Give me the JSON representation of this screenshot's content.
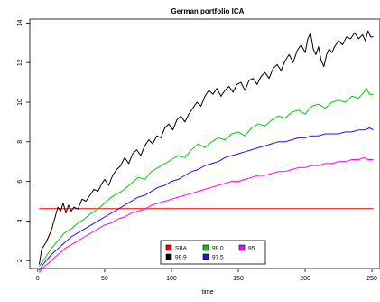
{
  "chart_data": {
    "type": "line",
    "title": "German portfolio ICA",
    "xlabel": "time",
    "ylabel": "",
    "xlim": [
      -6,
      256
    ],
    "ylim": [
      1.6,
      14.2
    ],
    "xticks": [
      0,
      50,
      100,
      150,
      200,
      250
    ],
    "yticks": [
      2,
      4,
      6,
      8,
      10,
      12,
      14
    ],
    "grid": false,
    "legend_position": "bottom-center",
    "legend": {
      "columns": [
        [
          {
            "label": "SBA",
            "color": "#ff0000"
          },
          {
            "label": "99.9",
            "color": "#000000"
          }
        ],
        [
          {
            "label": "99.0",
            "color": "#00cc00"
          },
          {
            "label": "97.5",
            "color": "#3300ff"
          }
        ],
        [
          {
            "label": "95",
            "color": "#ff00ff"
          }
        ]
      ]
    },
    "series": [
      {
        "name": "SBA",
        "color": "#ff0000",
        "points": [
          [
            1,
            4.62
          ],
          [
            251,
            4.62
          ]
        ]
      },
      {
        "name": "99.9",
        "color": "#000000",
        "points": [
          [
            1,
            1.8
          ],
          [
            3,
            2.6
          ],
          [
            6,
            2.9
          ],
          [
            8,
            3.2
          ],
          [
            10,
            3.5
          ],
          [
            13,
            4.2
          ],
          [
            15,
            4.7
          ],
          [
            17,
            4.5
          ],
          [
            19,
            4.9
          ],
          [
            21,
            4.4
          ],
          [
            23,
            4.8
          ],
          [
            25,
            4.5
          ],
          [
            27,
            4.7
          ],
          [
            30,
            4.6
          ],
          [
            33,
            5.1
          ],
          [
            36,
            5.0
          ],
          [
            39,
            5.3
          ],
          [
            42,
            5.6
          ],
          [
            45,
            5.5
          ],
          [
            48,
            5.9
          ],
          [
            50,
            6.1
          ],
          [
            53,
            5.8
          ],
          [
            56,
            6.3
          ],
          [
            59,
            6.6
          ],
          [
            62,
            6.8
          ],
          [
            65,
            7.2
          ],
          [
            68,
            6.9
          ],
          [
            71,
            7.4
          ],
          [
            74,
            7.6
          ],
          [
            77,
            7.3
          ],
          [
            80,
            7.8
          ],
          [
            83,
            8.1
          ],
          [
            86,
            7.9
          ],
          [
            89,
            8.3
          ],
          [
            92,
            8.2
          ],
          [
            95,
            8.7
          ],
          [
            98,
            8.9
          ],
          [
            101,
            8.6
          ],
          [
            104,
            9.1
          ],
          [
            107,
            9.3
          ],
          [
            110,
            9.0
          ],
          [
            113,
            9.4
          ],
          [
            116,
            9.7
          ],
          [
            119,
            10.0
          ],
          [
            122,
            9.8
          ],
          [
            125,
            10.3
          ],
          [
            128,
            10.6
          ],
          [
            131,
            10.4
          ],
          [
            134,
            10.7
          ],
          [
            137,
            10.3
          ],
          [
            140,
            10.6
          ],
          [
            143,
            10.8
          ],
          [
            146,
            10.5
          ],
          [
            149,
            10.9
          ],
          [
            152,
            11.0
          ],
          [
            155,
            10.6
          ],
          [
            158,
            11.1
          ],
          [
            161,
            11.2
          ],
          [
            164,
            10.9
          ],
          [
            167,
            11.3
          ],
          [
            170,
            11.5
          ],
          [
            173,
            11.2
          ],
          [
            176,
            11.7
          ],
          [
            179,
            11.9
          ],
          [
            182,
            11.6
          ],
          [
            185,
            12.1
          ],
          [
            188,
            12.4
          ],
          [
            191,
            12.0
          ],
          [
            194,
            12.6
          ],
          [
            197,
            12.9
          ],
          [
            200,
            12.5
          ],
          [
            202,
            13.2
          ],
          [
            204,
            13.5
          ],
          [
            206,
            12.7
          ],
          [
            208,
            12.4
          ],
          [
            210,
            12.8
          ],
          [
            212,
            12.1
          ],
          [
            214,
            11.8
          ],
          [
            216,
            12.4
          ],
          [
            218,
            12.7
          ],
          [
            220,
            12.5
          ],
          [
            222,
            12.8
          ],
          [
            225,
            13.1
          ],
          [
            228,
            12.9
          ],
          [
            231,
            13.3
          ],
          [
            234,
            13.2
          ],
          [
            237,
            13.5
          ],
          [
            240,
            13.2
          ],
          [
            243,
            13.4
          ],
          [
            245,
            13.1
          ],
          [
            247,
            13.6
          ],
          [
            249,
            13.3
          ],
          [
            251,
            13.3
          ]
        ]
      },
      {
        "name": "99.0",
        "color": "#00cc00",
        "points": [
          [
            1,
            1.7
          ],
          [
            5,
            2.1
          ],
          [
            10,
            2.6
          ],
          [
            15,
            3.0
          ],
          [
            20,
            3.4
          ],
          [
            25,
            3.6
          ],
          [
            30,
            3.9
          ],
          [
            35,
            4.1
          ],
          [
            40,
            4.4
          ],
          [
            45,
            4.6
          ],
          [
            50,
            4.9
          ],
          [
            55,
            5.2
          ],
          [
            60,
            5.4
          ],
          [
            65,
            5.6
          ],
          [
            70,
            5.9
          ],
          [
            75,
            6.2
          ],
          [
            80,
            6.1
          ],
          [
            85,
            6.5
          ],
          [
            90,
            6.7
          ],
          [
            95,
            6.9
          ],
          [
            100,
            7.1
          ],
          [
            105,
            7.3
          ],
          [
            110,
            7.2
          ],
          [
            115,
            7.6
          ],
          [
            120,
            7.9
          ],
          [
            125,
            7.7
          ],
          [
            130,
            8.0
          ],
          [
            135,
            8.2
          ],
          [
            140,
            8.1
          ],
          [
            145,
            8.4
          ],
          [
            150,
            8.5
          ],
          [
            155,
            8.3
          ],
          [
            160,
            8.7
          ],
          [
            165,
            8.9
          ],
          [
            170,
            8.8
          ],
          [
            175,
            9.1
          ],
          [
            180,
            9.3
          ],
          [
            185,
            9.2
          ],
          [
            190,
            9.5
          ],
          [
            195,
            9.6
          ],
          [
            200,
            9.4
          ],
          [
            205,
            9.8
          ],
          [
            210,
            9.9
          ],
          [
            215,
            9.7
          ],
          [
            220,
            10.0
          ],
          [
            225,
            10.1
          ],
          [
            230,
            10.0
          ],
          [
            235,
            10.3
          ],
          [
            240,
            10.2
          ],
          [
            244,
            10.5
          ],
          [
            246,
            10.7
          ],
          [
            248,
            10.4
          ],
          [
            251,
            10.4
          ]
        ]
      },
      {
        "name": "97.5",
        "color": "#3300ff",
        "points": [
          [
            1,
            1.5
          ],
          [
            5,
            1.9
          ],
          [
            10,
            2.3
          ],
          [
            15,
            2.6
          ],
          [
            20,
            2.9
          ],
          [
            25,
            3.2
          ],
          [
            30,
            3.4
          ],
          [
            35,
            3.6
          ],
          [
            40,
            3.8
          ],
          [
            45,
            4.0
          ],
          [
            50,
            4.2
          ],
          [
            55,
            4.4
          ],
          [
            60,
            4.6
          ],
          [
            65,
            4.8
          ],
          [
            70,
            5.0
          ],
          [
            75,
            5.2
          ],
          [
            80,
            5.3
          ],
          [
            85,
            5.5
          ],
          [
            90,
            5.7
          ],
          [
            95,
            5.8
          ],
          [
            100,
            6.0
          ],
          [
            105,
            6.1
          ],
          [
            110,
            6.3
          ],
          [
            115,
            6.5
          ],
          [
            120,
            6.6
          ],
          [
            125,
            6.8
          ],
          [
            130,
            6.9
          ],
          [
            135,
            7.0
          ],
          [
            140,
            7.2
          ],
          [
            145,
            7.3
          ],
          [
            150,
            7.4
          ],
          [
            155,
            7.5
          ],
          [
            160,
            7.6
          ],
          [
            165,
            7.7
          ],
          [
            170,
            7.8
          ],
          [
            175,
            7.9
          ],
          [
            180,
            8.0
          ],
          [
            185,
            8.0
          ],
          [
            190,
            8.1
          ],
          [
            195,
            8.2
          ],
          [
            200,
            8.2
          ],
          [
            205,
            8.3
          ],
          [
            210,
            8.3
          ],
          [
            215,
            8.4
          ],
          [
            220,
            8.4
          ],
          [
            225,
            8.4
          ],
          [
            230,
            8.5
          ],
          [
            235,
            8.5
          ],
          [
            240,
            8.6
          ],
          [
            245,
            8.6
          ],
          [
            248,
            8.7
          ],
          [
            251,
            8.6
          ]
        ]
      },
      {
        "name": "95",
        "color": "#ff00ff",
        "points": [
          [
            1,
            1.4
          ],
          [
            5,
            1.7
          ],
          [
            10,
            2.0
          ],
          [
            15,
            2.3
          ],
          [
            20,
            2.6
          ],
          [
            25,
            2.8
          ],
          [
            30,
            3.0
          ],
          [
            35,
            3.2
          ],
          [
            40,
            3.4
          ],
          [
            45,
            3.6
          ],
          [
            50,
            3.8
          ],
          [
            55,
            3.9
          ],
          [
            60,
            4.1
          ],
          [
            65,
            4.2
          ],
          [
            70,
            4.4
          ],
          [
            75,
            4.5
          ],
          [
            80,
            4.6
          ],
          [
            85,
            4.8
          ],
          [
            90,
            4.9
          ],
          [
            95,
            5.0
          ],
          [
            100,
            5.1
          ],
          [
            105,
            5.2
          ],
          [
            110,
            5.3
          ],
          [
            115,
            5.4
          ],
          [
            120,
            5.5
          ],
          [
            125,
            5.6
          ],
          [
            130,
            5.7
          ],
          [
            135,
            5.8
          ],
          [
            140,
            5.9
          ],
          [
            145,
            6.0
          ],
          [
            150,
            6.0
          ],
          [
            155,
            6.1
          ],
          [
            160,
            6.2
          ],
          [
            165,
            6.3
          ],
          [
            170,
            6.3
          ],
          [
            175,
            6.4
          ],
          [
            180,
            6.5
          ],
          [
            185,
            6.5
          ],
          [
            190,
            6.6
          ],
          [
            195,
            6.7
          ],
          [
            200,
            6.7
          ],
          [
            205,
            6.8
          ],
          [
            210,
            6.8
          ],
          [
            215,
            6.9
          ],
          [
            220,
            6.9
          ],
          [
            225,
            7.0
          ],
          [
            230,
            7.0
          ],
          [
            235,
            7.1
          ],
          [
            240,
            7.1
          ],
          [
            244,
            7.2
          ],
          [
            247,
            7.1
          ],
          [
            251,
            7.1
          ]
        ]
      }
    ]
  }
}
